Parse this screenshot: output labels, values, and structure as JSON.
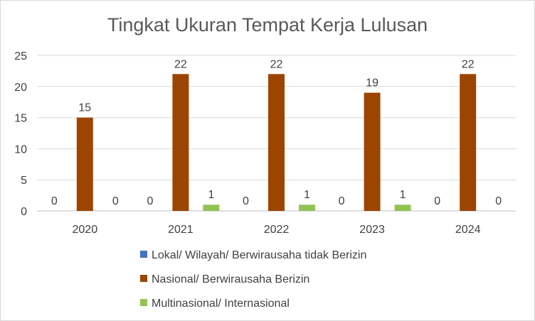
{
  "chart_data": {
    "type": "bar",
    "title": "Tingkat Ukuran Tempat Kerja Lulusan",
    "xlabel": "",
    "ylabel": "",
    "categories": [
      "2020",
      "2021",
      "2022",
      "2023",
      "2024"
    ],
    "ylim": [
      0,
      25
    ],
    "yticks": [
      0,
      5,
      10,
      15,
      20,
      25
    ],
    "grid": true,
    "legend_position": "bottom",
    "series": [
      {
        "name": "Lokal/ Wilayah/ Berwirausaha tidak Berizin",
        "color": "#4472c4",
        "values": [
          0,
          0,
          0,
          0,
          0
        ]
      },
      {
        "name": "Nasional/ Berwirausaha Berizin",
        "color": "#9c4500",
        "values": [
          15,
          22,
          22,
          19,
          22
        ]
      },
      {
        "name": "Multinasional/ Internasional",
        "color": "#92c353",
        "values": [
          0,
          1,
          1,
          1,
          0
        ]
      }
    ]
  }
}
